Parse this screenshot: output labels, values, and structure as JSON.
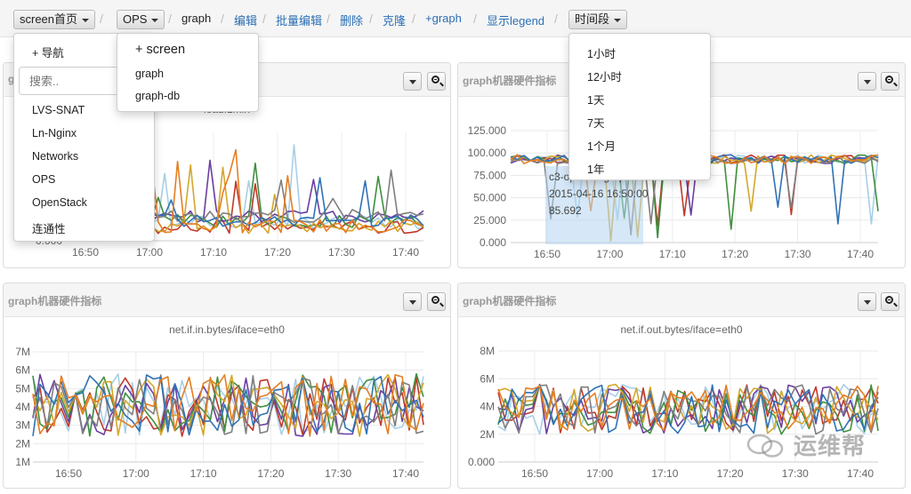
{
  "breadcrumb": {
    "screen_btn": "screen首页",
    "ops_btn": "OPS",
    "graph": "graph",
    "edit": "编辑",
    "batch_edit": "批量编辑",
    "delete": "删除",
    "clone": "克隆",
    "add_graph": "+graph",
    "show_legend": "显示legend",
    "time_btn": "时间段",
    "separator": "/"
  },
  "screen_menu": {
    "add_nav": "+ 导航",
    "search_placeholder": "搜索..",
    "items": [
      "LVS-SNAT",
      "Ln-Nginx",
      "Networks",
      "OPS",
      "OpenStack",
      "连通性"
    ]
  },
  "ops_menu": {
    "add_screen": "+ screen",
    "items": [
      "graph",
      "graph-db"
    ]
  },
  "time_menu": {
    "items": [
      "1小时",
      "12小时",
      "1天",
      "7天",
      "1个月",
      "1年"
    ]
  },
  "colors": {
    "series": [
      "#a7cfe8",
      "#c0392b",
      "#6b3fa0",
      "#3f8f3f",
      "#d4a72c",
      "#7f7f7f",
      "#2f72b5",
      "#e67e22"
    ],
    "link": "#2a6fb5",
    "tooltip_bg": "#b4d6f0"
  },
  "panels": [
    {
      "title": "g",
      "chart_title": "load.1min",
      "tooltip": null,
      "chart_data": {
        "type": "line",
        "x_ticks": [
          "16:50",
          "17:00",
          "17:10",
          "17:20",
          "17:30",
          "17:40"
        ],
        "y_ticks": [
          "0.000"
        ],
        "ylim": [
          0,
          4
        ],
        "grid": true
      }
    },
    {
      "title": "graph机器硬件指标",
      "chart_title": "",
      "tooltip": {
        "host": "c3-op-mon-graph01.b",
        "time": "2015-04-16 16:50:00",
        "value": "85.692"
      },
      "chart_data": {
        "type": "line",
        "x_ticks": [
          "16:50",
          "17:00",
          "17:10",
          "17:20",
          "17:30",
          "17:40"
        ],
        "y_ticks": [
          "0.000",
          "25.000",
          "50.000",
          "75.000",
          "100.000",
          "125.000"
        ],
        "ylim": [
          0,
          125
        ],
        "grid": true
      }
    },
    {
      "title": "graph机器硬件指标",
      "chart_title": "net.if.in.bytes/iface=eth0",
      "tooltip": null,
      "chart_data": {
        "type": "line",
        "x_ticks": [
          "16:50",
          "17:00",
          "17:10",
          "17:20",
          "17:30",
          "17:40"
        ],
        "y_ticks": [
          "1M",
          "2M",
          "3M",
          "4M",
          "5M",
          "6M",
          "7M"
        ],
        "ylim": [
          1,
          7
        ],
        "grid": true
      }
    },
    {
      "title": "graph机器硬件指标",
      "chart_title": "net.if.out.bytes/iface=eth0",
      "tooltip": null,
      "chart_data": {
        "type": "line",
        "x_ticks": [
          "16:50",
          "17:00",
          "17:10",
          "17:20",
          "17:30",
          "17:40"
        ],
        "y_ticks": [
          "0.000",
          "2M",
          "4M",
          "6M",
          "8M"
        ],
        "ylim": [
          0,
          8
        ],
        "grid": true
      }
    }
  ],
  "watermark": "运维帮"
}
